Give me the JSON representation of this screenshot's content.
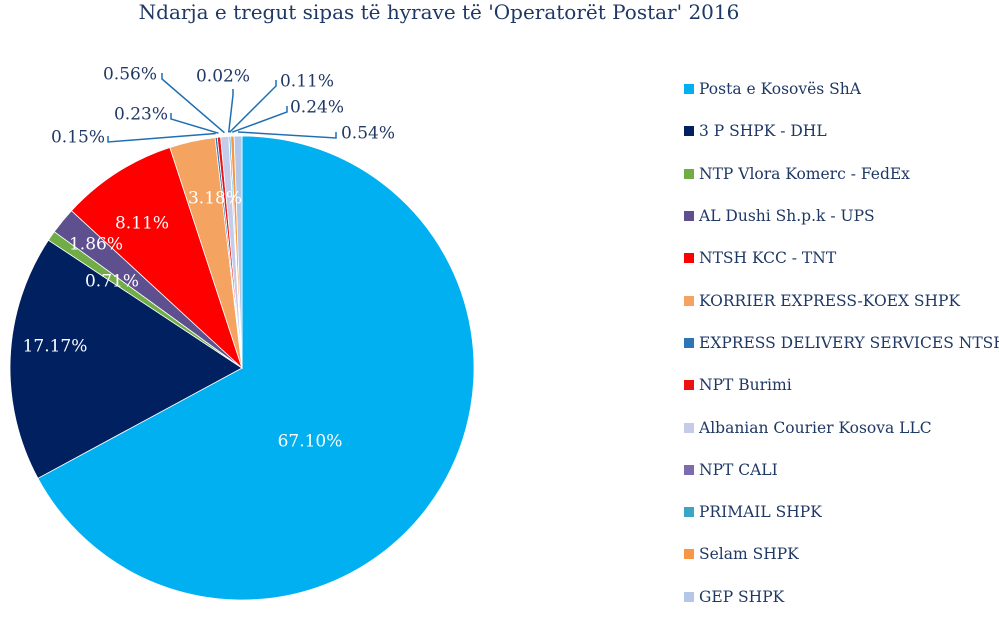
{
  "chart_data": {
    "type": "pie",
    "title": "Ndarja e tregut sipas të hyrave të 'Operatorët Postar' 2016",
    "legend_position": "right",
    "slices": [
      {
        "name": "Posta e Kosovës ShA",
        "value": 67.1,
        "label": "67.10%",
        "color": "#00b0f0"
      },
      {
        "name": "3 P SHPK - DHL",
        "value": 17.17,
        "label": "17.17%",
        "color": "#002060"
      },
      {
        "name": "NTP Vlora Komerc - FedEx",
        "value": 0.71,
        "label": "0.71%",
        "color": "#70ad47"
      },
      {
        "name": "AL Dushi Sh.p.k - UPS",
        "value": 1.86,
        "label": "1.86%",
        "color": "#5e4f8f"
      },
      {
        "name": "NTSH KCC  - TNT",
        "value": 8.11,
        "label": "8.11%",
        "color": "#ff0000"
      },
      {
        "name": "KORRIER EXPRESS-KOEX SHPK",
        "value": 3.18,
        "label": "3.18%",
        "color": "#f4a460"
      },
      {
        "name": "EXPRESS DELIVERY SERVICES NTSH",
        "value": 0.15,
        "label": "0.15%",
        "color": "#2e75b6"
      },
      {
        "name": "NPT Burimi",
        "value": 0.23,
        "label": "0.23%",
        "color": "#ee1111"
      },
      {
        "name": "Albanian Courier Kosova LLC",
        "value": 0.56,
        "label": "0.56%",
        "color": "#c5cbe8"
      },
      {
        "name": "NPT CALI",
        "value": 0.02,
        "label": "0.02%",
        "color": "#7d6bb0"
      },
      {
        "name": "PRIMAIL SHPK",
        "value": 0.11,
        "label": "0.11%",
        "color": "#3aa6c4"
      },
      {
        "name": "Selam SHPK",
        "value": 0.24,
        "label": "0.24%",
        "color": "#f79646"
      },
      {
        "name": "GEP SHPK",
        "value": 0.54,
        "label": "0.54%",
        "color": "#b4c7e7"
      }
    ]
  }
}
